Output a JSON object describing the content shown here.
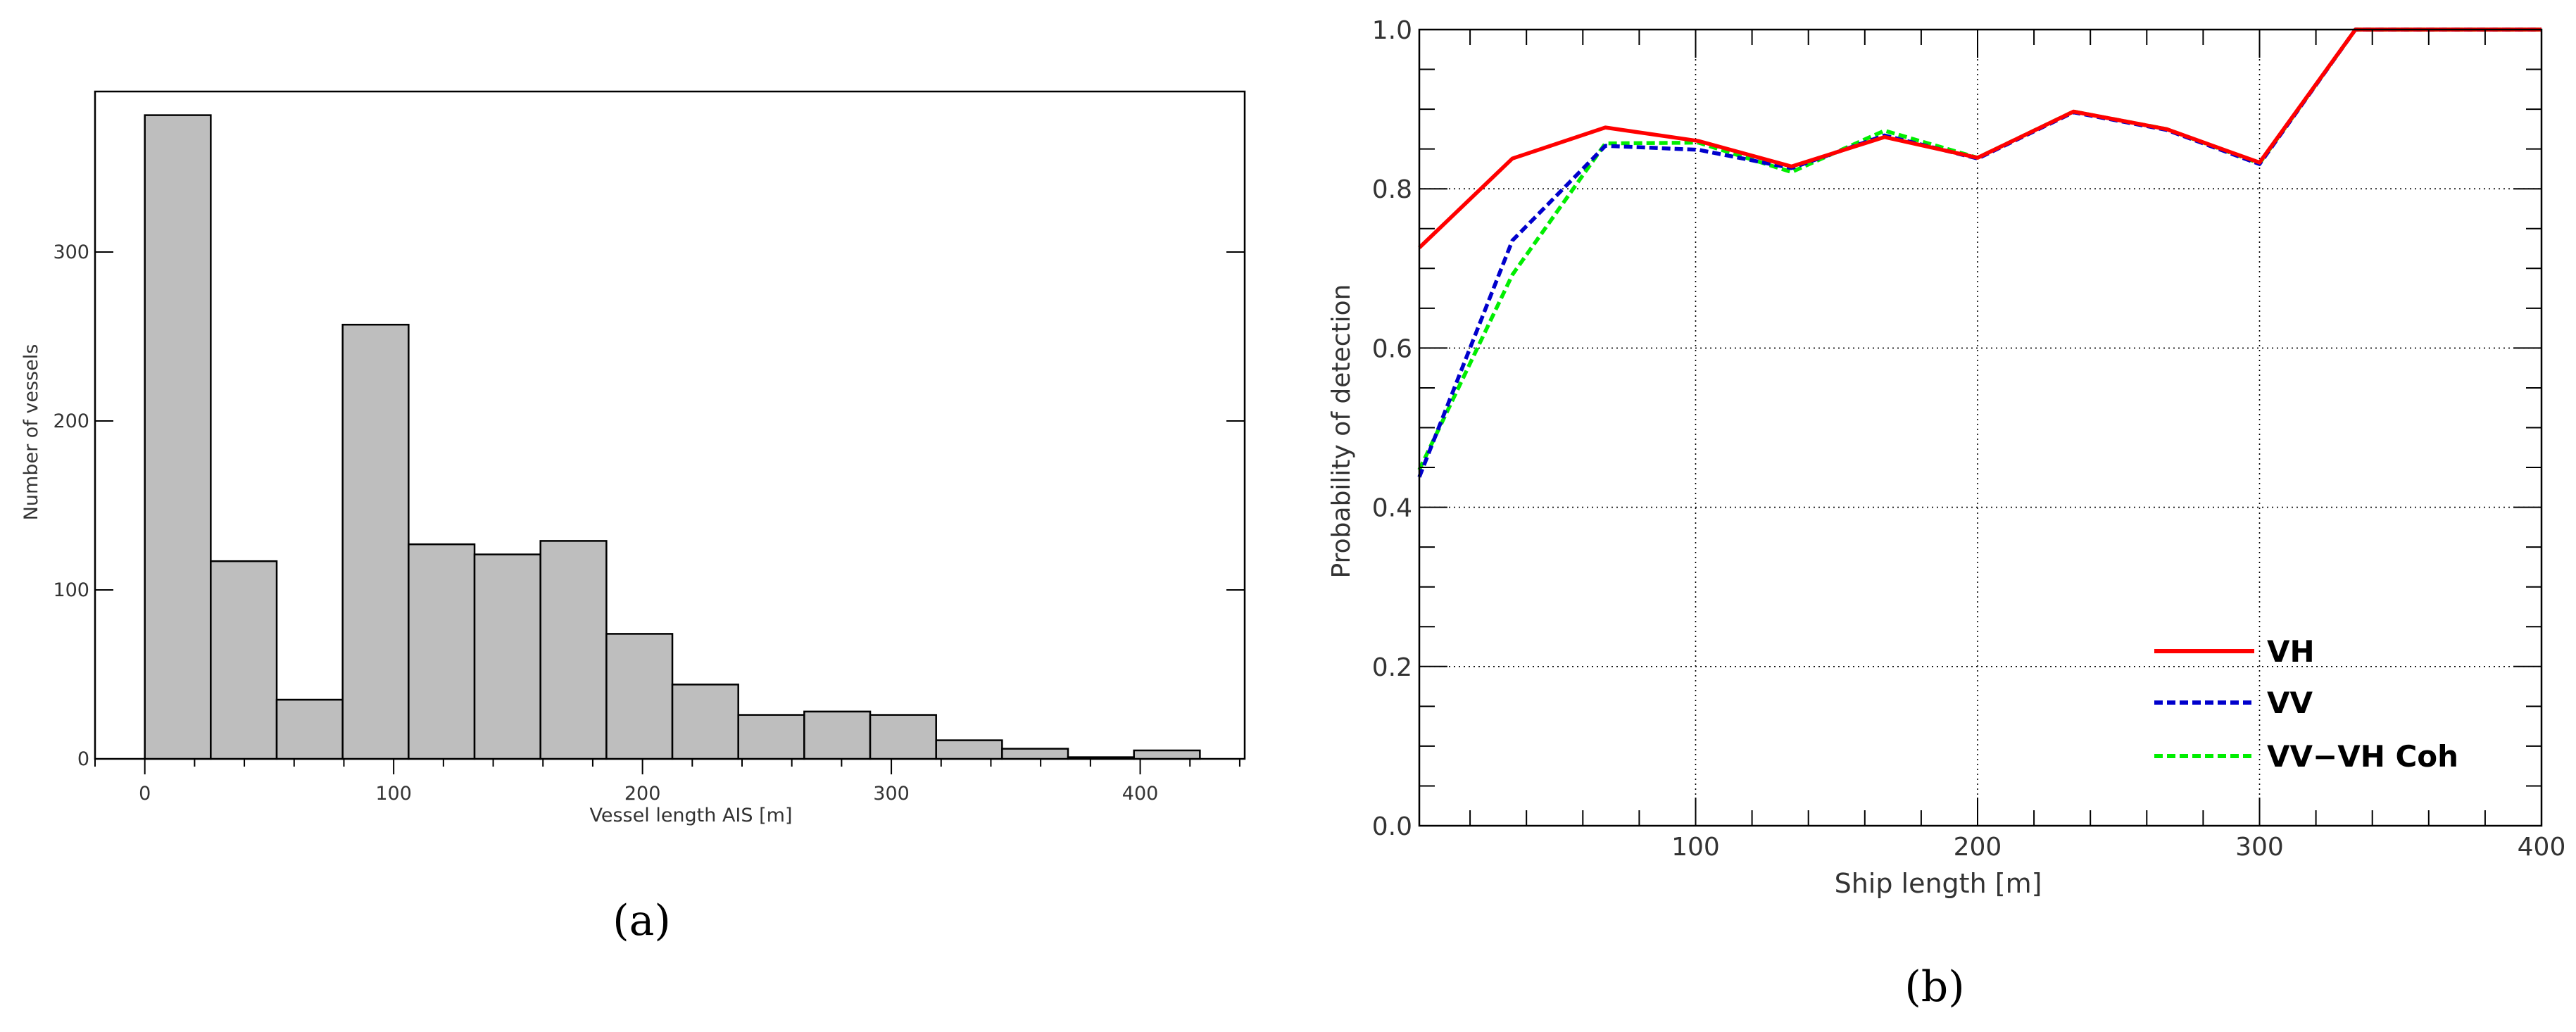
{
  "chart_data": [
    {
      "type": "bar",
      "panel_label": "(a)",
      "xlabel": "Vessel length AIS [m]",
      "ylabel": "Number of vessels",
      "bin_width": 26.5,
      "bin_starts": [
        0,
        26.5,
        53,
        79.5,
        106,
        132.5,
        159,
        185.5,
        212,
        238.5,
        265,
        291.5,
        318,
        344.5,
        371,
        397.5
      ],
      "values": [
        381,
        117,
        35,
        257,
        127,
        121,
        129,
        74,
        44,
        26,
        28,
        26,
        11,
        6,
        1,
        5
      ],
      "xlim": [
        -20,
        442
      ],
      "ylim": [
        0,
        395
      ],
      "xticks": [
        0,
        100,
        200,
        300,
        400
      ],
      "xtick_labels": [
        "0",
        "100",
        "200",
        "300",
        "400"
      ],
      "yticks": [
        0,
        100,
        200,
        300
      ],
      "ytick_labels": [
        "0",
        "100",
        "200",
        "300"
      ],
      "grid": false,
      "colors": {
        "bar_fill": "#bebebe",
        "bar_edge": "#000000"
      }
    },
    {
      "type": "line",
      "panel_label": "(b)",
      "xlabel": "Ship length [m]",
      "ylabel": "Probability of detection",
      "xlim": [
        2,
        400
      ],
      "ylim": [
        0,
        1.0
      ],
      "xticks": [
        100,
        200,
        300,
        400
      ],
      "xtick_labels": [
        "100",
        "200",
        "300",
        "400"
      ],
      "yticks": [
        0.0,
        0.2,
        0.4,
        0.6,
        0.8,
        1.0
      ],
      "ytick_labels": [
        "0.0",
        "0.2",
        "0.4",
        "0.6",
        "0.8",
        "1.0"
      ],
      "grid": true,
      "legend_position": "bottom-right",
      "series": [
        {
          "name": "VH",
          "color": "#ff0000",
          "dash": "solid",
          "x": [
            2,
            35,
            68,
            101,
            134,
            167,
            200,
            234,
            267,
            300,
            334,
            400
          ],
          "y": [
            0.726,
            0.838,
            0.877,
            0.86,
            0.828,
            0.865,
            0.839,
            0.897,
            0.875,
            0.833,
            1.0,
            1.0
          ]
        },
        {
          "name": "VV",
          "color": "#0000cc",
          "dash": "dashed",
          "x": [
            2,
            35,
            68,
            101,
            134,
            167,
            200,
            234,
            267,
            300,
            334,
            400
          ],
          "y": [
            0.438,
            0.735,
            0.854,
            0.849,
            0.826,
            0.867,
            0.838,
            0.896,
            0.874,
            0.831,
            1.0,
            1.0
          ]
        },
        {
          "name": "VV−VH Coh",
          "color": "#00ee00",
          "dash": "dashed",
          "x": [
            2,
            35,
            68,
            101,
            134,
            167,
            200,
            234,
            267,
            300,
            334,
            400
          ],
          "y": [
            0.447,
            0.692,
            0.857,
            0.858,
            0.821,
            0.873,
            0.839,
            0.897,
            0.875,
            0.832,
            1.0,
            1.0
          ]
        }
      ]
    }
  ]
}
